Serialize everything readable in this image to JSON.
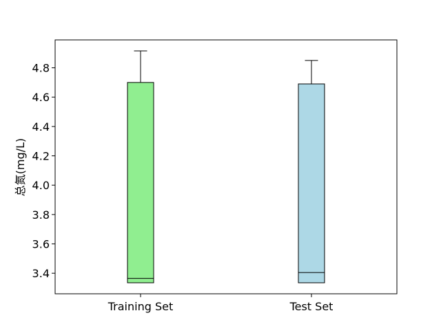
{
  "chart_data": {
    "type": "box",
    "categories": [
      "Training Set",
      "Test Set"
    ],
    "ylabel": "总氮(mg/L)",
    "xlabel": "",
    "title": "",
    "ylim": [
      3.26,
      4.99
    ],
    "yticks": [
      "3.4",
      "3.6",
      "3.8",
      "4.0",
      "4.2",
      "4.4",
      "4.6",
      "4.8"
    ],
    "boxes": [
      {
        "category": "Training Set",
        "whisker_low": 3.335,
        "q1": 3.335,
        "median": 3.365,
        "q3": 4.7,
        "whisker_high": 4.915,
        "color": "#90ee90"
      },
      {
        "category": "Test Set",
        "whisker_low": 3.335,
        "q1": 3.335,
        "median": 3.405,
        "q3": 4.69,
        "whisker_high": 4.85,
        "color": "#add8e6"
      }
    ],
    "grid": false
  }
}
